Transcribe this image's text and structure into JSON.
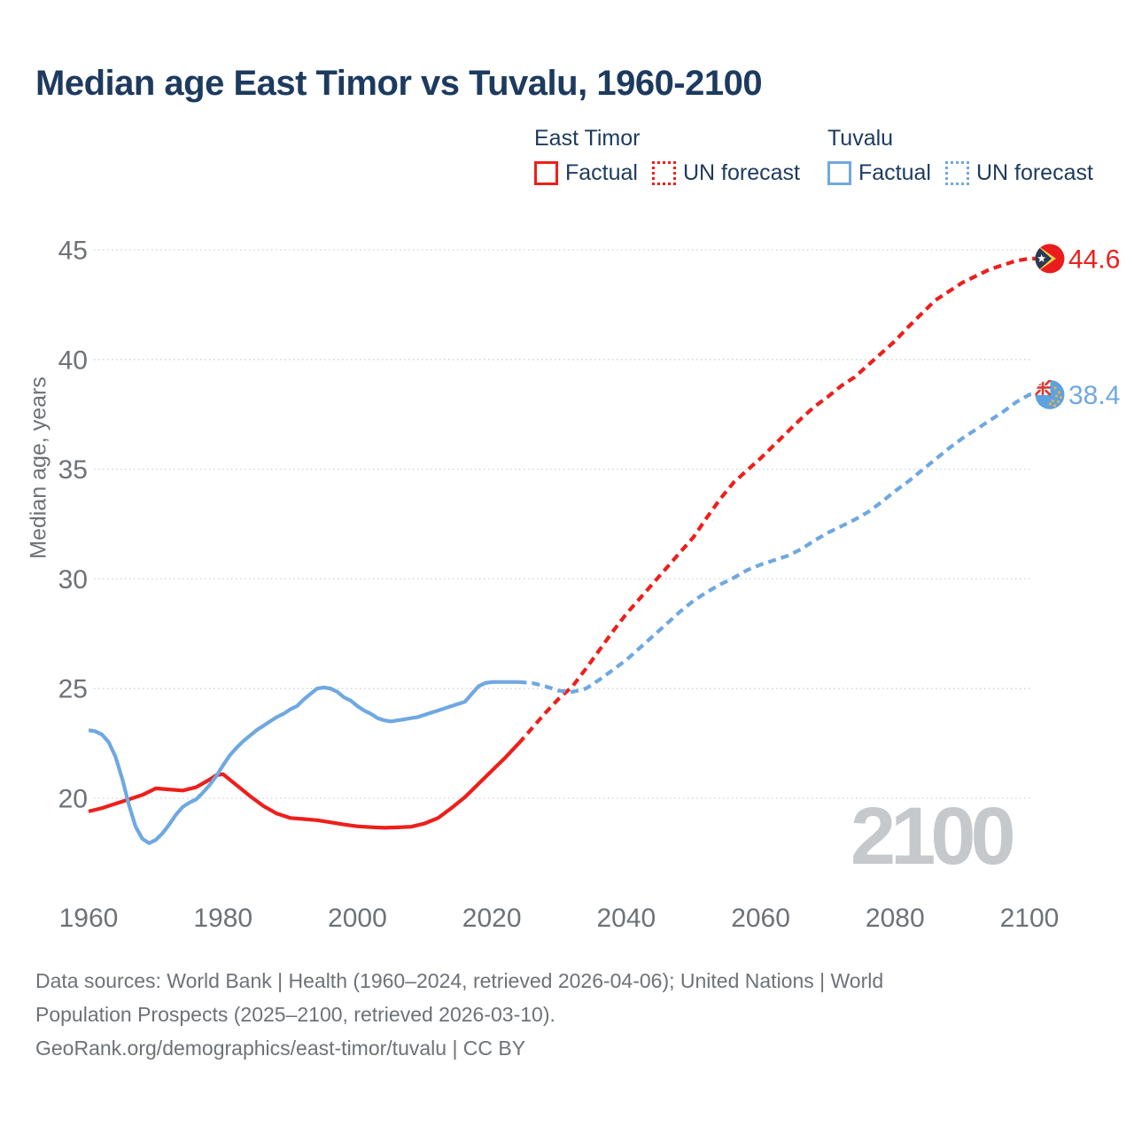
{
  "title": {
    "text": "Median age East Timor vs Tuvalu, 1960-2100",
    "color": "#1d3a5f"
  },
  "legend": {
    "groups": [
      {
        "name": "East Timor",
        "color": "#ed1f1b",
        "items": [
          {
            "label": "Factual",
            "style": "solid"
          },
          {
            "label": "UN forecast",
            "style": "dotted"
          }
        ]
      },
      {
        "name": "Tuvalu",
        "color": "#6fa8e1",
        "items": [
          {
            "label": "Factual",
            "style": "solid"
          },
          {
            "label": "UN forecast",
            "style": "dotted"
          }
        ]
      }
    ]
  },
  "watermark": {
    "text": "2100",
    "color": "#c6c9cc"
  },
  "footer": {
    "color": "#6d7277",
    "lines": [
      "Data sources: World Bank | Health (1960–2024, retrieved 2026-04-06); United Nations | World",
      "Population Prospects (2025–2100, retrieved 2026-03-10).",
      "GeoRank.org/demographics/east-timor/tuvalu | CC BY"
    ]
  },
  "chart_data": {
    "type": "line",
    "title": "Median age East Timor vs Tuvalu, 1960-2100",
    "xlabel": "",
    "ylabel": "Median age, years",
    "xlim": [
      1960,
      2100
    ],
    "ylim": [
      17,
      46
    ],
    "x_ticks": [
      1960,
      1980,
      2000,
      2020,
      2040,
      2060,
      2080,
      2100
    ],
    "y_ticks": [
      20,
      25,
      30,
      35,
      40,
      45
    ],
    "grid": "horizontal-dotted",
    "grid_color": "#ccd1d5",
    "axis_text_color": "#6d7277",
    "legend_position": "top-right",
    "series": [
      {
        "name": "East Timor — Factual",
        "color": "#ed1f1b",
        "dash": "solid",
        "points": [
          [
            1960,
            19.4
          ],
          [
            1962,
            19.55
          ],
          [
            1964,
            19.75
          ],
          [
            1966,
            19.95
          ],
          [
            1968,
            20.15
          ],
          [
            1970,
            20.45
          ],
          [
            1972,
            20.4
          ],
          [
            1974,
            20.35
          ],
          [
            1976,
            20.5
          ],
          [
            1978,
            20.85
          ],
          [
            1979,
            21.05
          ],
          [
            1980,
            21.1
          ],
          [
            1982,
            20.6
          ],
          [
            1984,
            20.1
          ],
          [
            1986,
            19.65
          ],
          [
            1988,
            19.3
          ],
          [
            1990,
            19.1
          ],
          [
            1992,
            19.05
          ],
          [
            1994,
            19.0
          ],
          [
            1996,
            18.9
          ],
          [
            1998,
            18.8
          ],
          [
            2000,
            18.72
          ],
          [
            2002,
            18.68
          ],
          [
            2004,
            18.65
          ],
          [
            2006,
            18.67
          ],
          [
            2008,
            18.7
          ],
          [
            2010,
            18.85
          ],
          [
            2012,
            19.1
          ],
          [
            2014,
            19.55
          ],
          [
            2016,
            20.05
          ],
          [
            2018,
            20.65
          ],
          [
            2020,
            21.25
          ],
          [
            2022,
            21.85
          ],
          [
            2024,
            22.5
          ]
        ]
      },
      {
        "name": "East Timor — UN forecast",
        "color": "#ed1f1b",
        "dash": "dashed",
        "points": [
          [
            2024,
            22.5
          ],
          [
            2026,
            23.2
          ],
          [
            2028,
            23.9
          ],
          [
            2030,
            24.55
          ],
          [
            2032,
            25.1
          ],
          [
            2034,
            25.9
          ],
          [
            2036,
            26.75
          ],
          [
            2038,
            27.6
          ],
          [
            2040,
            28.4
          ],
          [
            2042,
            29.1
          ],
          [
            2044,
            29.8
          ],
          [
            2046,
            30.5
          ],
          [
            2048,
            31.2
          ],
          [
            2050,
            31.9
          ],
          [
            2052,
            32.8
          ],
          [
            2054,
            33.65
          ],
          [
            2056,
            34.4
          ],
          [
            2058,
            34.95
          ],
          [
            2060,
            35.5
          ],
          [
            2062,
            36.1
          ],
          [
            2064,
            36.7
          ],
          [
            2066,
            37.3
          ],
          [
            2068,
            37.85
          ],
          [
            2070,
            38.3
          ],
          [
            2072,
            38.8
          ],
          [
            2074,
            39.2
          ],
          [
            2076,
            39.75
          ],
          [
            2078,
            40.3
          ],
          [
            2080,
            40.85
          ],
          [
            2082,
            41.5
          ],
          [
            2084,
            42.1
          ],
          [
            2086,
            42.7
          ],
          [
            2088,
            43.1
          ],
          [
            2090,
            43.5
          ],
          [
            2092,
            43.8
          ],
          [
            2094,
            44.1
          ],
          [
            2096,
            44.3
          ],
          [
            2098,
            44.5
          ],
          [
            2100,
            44.6
          ]
        ]
      },
      {
        "name": "Tuvalu — Factual",
        "color": "#6fa8e1",
        "dash": "solid",
        "points": [
          [
            1960,
            23.1
          ],
          [
            1961,
            23.05
          ],
          [
            1962,
            22.9
          ],
          [
            1963,
            22.55
          ],
          [
            1964,
            21.9
          ],
          [
            1965,
            20.9
          ],
          [
            1966,
            19.7
          ],
          [
            1967,
            18.7
          ],
          [
            1968,
            18.15
          ],
          [
            1969,
            17.95
          ],
          [
            1970,
            18.1
          ],
          [
            1971,
            18.4
          ],
          [
            1972,
            18.8
          ],
          [
            1973,
            19.25
          ],
          [
            1974,
            19.6
          ],
          [
            1975,
            19.8
          ],
          [
            1976,
            19.95
          ],
          [
            1977,
            20.25
          ],
          [
            1978,
            20.6
          ],
          [
            1979,
            21.0
          ],
          [
            1980,
            21.5
          ],
          [
            1981,
            21.95
          ],
          [
            1982,
            22.3
          ],
          [
            1983,
            22.6
          ],
          [
            1984,
            22.85
          ],
          [
            1985,
            23.1
          ],
          [
            1986,
            23.3
          ],
          [
            1987,
            23.5
          ],
          [
            1988,
            23.7
          ],
          [
            1989,
            23.85
          ],
          [
            1990,
            24.05
          ],
          [
            1991,
            24.2
          ],
          [
            1992,
            24.5
          ],
          [
            1993,
            24.75
          ],
          [
            1994,
            25.0
          ],
          [
            1995,
            25.05
          ],
          [
            1996,
            25.0
          ],
          [
            1997,
            24.85
          ],
          [
            1998,
            24.6
          ],
          [
            1999,
            24.45
          ],
          [
            2000,
            24.2
          ],
          [
            2001,
            24.0
          ],
          [
            2002,
            23.85
          ],
          [
            2003,
            23.65
          ],
          [
            2004,
            23.55
          ],
          [
            2005,
            23.5
          ],
          [
            2006,
            23.55
          ],
          [
            2007,
            23.6
          ],
          [
            2008,
            23.65
          ],
          [
            2009,
            23.7
          ],
          [
            2010,
            23.8
          ],
          [
            2011,
            23.9
          ],
          [
            2012,
            24.0
          ],
          [
            2013,
            24.1
          ],
          [
            2014,
            24.2
          ],
          [
            2015,
            24.3
          ],
          [
            2016,
            24.4
          ],
          [
            2017,
            24.75
          ],
          [
            2018,
            25.1
          ],
          [
            2019,
            25.25
          ],
          [
            2020,
            25.3
          ],
          [
            2022,
            25.3
          ],
          [
            2024,
            25.3
          ]
        ]
      },
      {
        "name": "Tuvalu — UN forecast",
        "color": "#6fa8e1",
        "dash": "dashed",
        "points": [
          [
            2024,
            25.3
          ],
          [
            2026,
            25.25
          ],
          [
            2028,
            25.1
          ],
          [
            2030,
            24.9
          ],
          [
            2032,
            24.85
          ],
          [
            2034,
            25.0
          ],
          [
            2036,
            25.4
          ],
          [
            2038,
            25.85
          ],
          [
            2040,
            26.3
          ],
          [
            2042,
            26.85
          ],
          [
            2044,
            27.4
          ],
          [
            2046,
            27.95
          ],
          [
            2048,
            28.5
          ],
          [
            2050,
            29.0
          ],
          [
            2052,
            29.4
          ],
          [
            2054,
            29.75
          ],
          [
            2056,
            30.05
          ],
          [
            2058,
            30.4
          ],
          [
            2060,
            30.65
          ],
          [
            2062,
            30.85
          ],
          [
            2064,
            31.05
          ],
          [
            2066,
            31.35
          ],
          [
            2068,
            31.75
          ],
          [
            2070,
            32.1
          ],
          [
            2072,
            32.4
          ],
          [
            2074,
            32.7
          ],
          [
            2076,
            33.05
          ],
          [
            2078,
            33.5
          ],
          [
            2080,
            34.0
          ],
          [
            2082,
            34.45
          ],
          [
            2084,
            34.95
          ],
          [
            2086,
            35.45
          ],
          [
            2088,
            35.95
          ],
          [
            2090,
            36.4
          ],
          [
            2092,
            36.8
          ],
          [
            2094,
            37.2
          ],
          [
            2096,
            37.6
          ],
          [
            2098,
            38.05
          ],
          [
            2100,
            38.4
          ]
        ]
      }
    ],
    "end_labels": [
      {
        "series": "East Timor",
        "value": 44.6,
        "color": "#ed1f1b",
        "flag": "east-timor"
      },
      {
        "series": "Tuvalu",
        "value": 38.4,
        "color": "#6fa8e1",
        "flag": "tuvalu"
      }
    ]
  }
}
